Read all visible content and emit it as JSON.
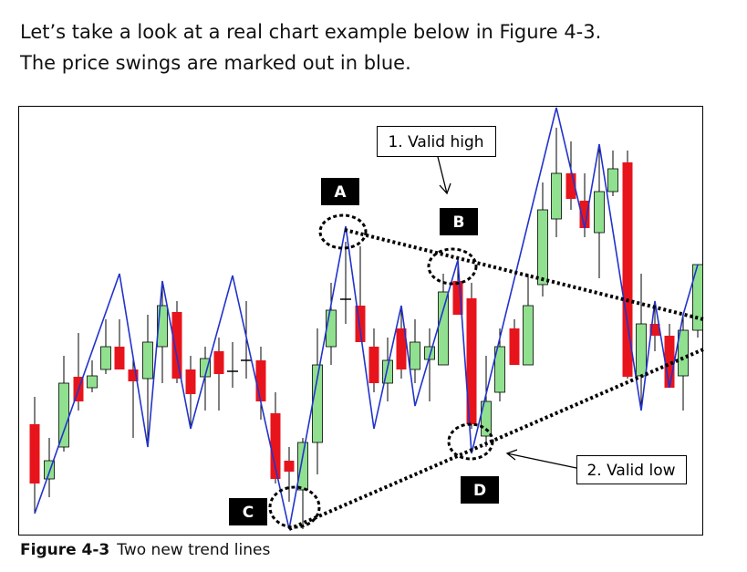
{
  "paragraph": {
    "line1": "Let’s take a look at a real chart example below in Figure 4-3.",
    "line2": "The price swings are marked out in blue."
  },
  "figure": {
    "labels": [
      "A",
      "B",
      "C",
      "D"
    ],
    "callouts": [
      "1. Valid high",
      "2. Valid low"
    ],
    "caption": {
      "number": "Figure 4-3",
      "text": "Two new trend lines"
    }
  }
}
